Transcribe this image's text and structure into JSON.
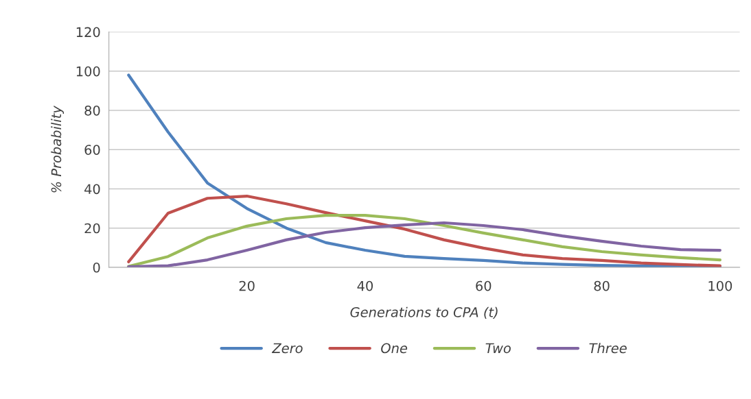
{
  "chart_data": {
    "type": "line",
    "xlabel": "Generations to CPA (t)",
    "ylabel": "% Probability",
    "x": [
      0,
      6.67,
      13.33,
      20,
      26.67,
      33.33,
      40,
      46.67,
      53.33,
      60,
      66.67,
      73.33,
      80,
      86.67,
      93.33,
      100
    ],
    "series": [
      {
        "name": "Zero",
        "color": "#4f81bd",
        "values": [
          98,
          69,
          43,
          30,
          20,
          12.6,
          8.7,
          5.6,
          4.5,
          3.5,
          2.2,
          1.5,
          1,
          0.7,
          0.5,
          0.3
        ]
      },
      {
        "name": "One",
        "color": "#c0504d",
        "values": [
          2.8,
          27.6,
          35.2,
          36.3,
          32.4,
          27.9,
          23.7,
          19.5,
          14,
          9.8,
          6.3,
          4.5,
          3.5,
          2.2,
          1.4,
          0.8
        ]
      },
      {
        "name": "Two",
        "color": "#9bbb59",
        "values": [
          0.5,
          5.5,
          15,
          21,
          24.8,
          26.5,
          26.5,
          24.8,
          21.3,
          17.5,
          14,
          10.5,
          8,
          6.3,
          4.9,
          3.8
        ]
      },
      {
        "name": "Three",
        "color": "#8064a2",
        "values": [
          0.3,
          0.8,
          3.8,
          8.7,
          14,
          17.8,
          20.2,
          21.6,
          22.7,
          21.3,
          19.2,
          16,
          13.3,
          10.8,
          9,
          8.7
        ]
      }
    ],
    "xlim": [
      -3.33,
      103.33
    ],
    "xticks": [
      20,
      40,
      60,
      80,
      100
    ],
    "ylim": [
      0,
      120
    ],
    "yticks": [
      0,
      20,
      40,
      60,
      80,
      100,
      120
    ],
    "grid": "y",
    "legend": "bottom",
    "marker": "none",
    "line_style": "solid"
  }
}
